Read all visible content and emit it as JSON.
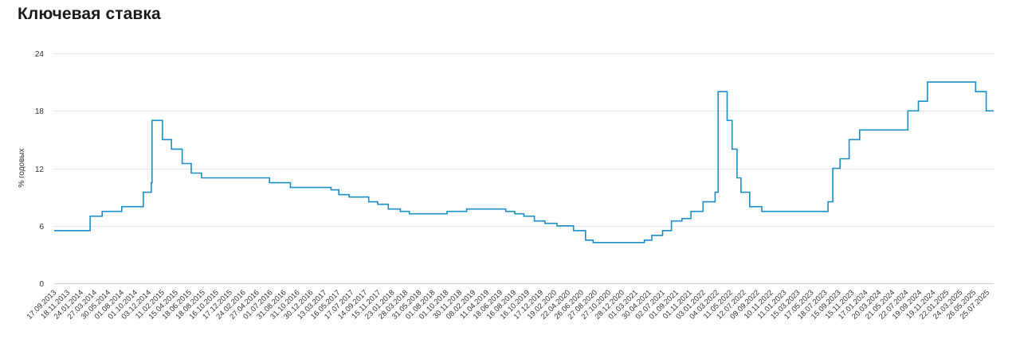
{
  "title": "Ключевая ставка",
  "chart_data": {
    "type": "line",
    "step": true,
    "title": "Ключевая ставка",
    "xlabel": "",
    "ylabel": "% годовых",
    "ylim": [
      0,
      24
    ],
    "yticks": [
      0,
      6,
      12,
      18,
      24
    ],
    "xlim": [
      "2013-09-17",
      "2025-09-01"
    ],
    "grid": true,
    "color": "#1b8fc6",
    "xtick_labels": [
      "17.09.2013",
      "18.11.2013",
      "24.01.2014",
      "27.03.2014",
      "30.05.2014",
      "01.08.2014",
      "01.10.2014",
      "03.12.2014",
      "11.02.2015",
      "15.04.2015",
      "18.06.2015",
      "18.08.2015",
      "16.10.2015",
      "17.12.2015",
      "24.02.2016",
      "27.04.2016",
      "01.07.2016",
      "31.08.2016",
      "31.10.2016",
      "30.12.2016",
      "13.03.2017",
      "16.05.2017",
      "17.07.2017",
      "14.09.2017",
      "15.11.2017",
      "23.01.2018",
      "28.03.2018",
      "31.05.2018",
      "01.08.2018",
      "01.10.2018",
      "30.11.2018",
      "08.02.2019",
      "11.04.2019",
      "18.06.2019",
      "16.08.2019",
      "16.10.2019",
      "17.12.2019",
      "19.02.2020",
      "22.04.2020",
      "26.06.2020",
      "27.08.2020",
      "27.10.2020",
      "28.12.2020",
      "01.03.2021",
      "30.04.2021",
      "02.07.2021",
      "01.09.2021",
      "01.11.2021",
      "03.01.2022",
      "04.03.2022",
      "11.05.2022",
      "12.07.2022",
      "09.09.2022",
      "10.11.2022",
      "11.01.2023",
      "15.03.2023",
      "17.05.2023",
      "18.07.2023",
      "15.09.2023",
      "15.11.2023",
      "17.01.2024",
      "20.03.2024",
      "21.05.2024",
      "22.07.2024",
      "19.09.2024",
      "19.11.2024",
      "22.01.2025",
      "24.03.2025",
      "26.05.2025",
      "25.07.2025"
    ],
    "series": [
      {
        "name": "",
        "points": [
          [
            "2013-09-17",
            5.5
          ],
          [
            "2014-03-03",
            7.0
          ],
          [
            "2014-04-28",
            7.5
          ],
          [
            "2014-07-28",
            8.0
          ],
          [
            "2014-11-05",
            9.5
          ],
          [
            "2014-12-12",
            10.5
          ],
          [
            "2014-12-16",
            17.0
          ],
          [
            "2015-02-02",
            15.0
          ],
          [
            "2015-03-16",
            14.0
          ],
          [
            "2015-05-05",
            12.5
          ],
          [
            "2015-06-16",
            11.5
          ],
          [
            "2015-08-03",
            11.0
          ],
          [
            "2016-06-14",
            10.5
          ],
          [
            "2016-09-19",
            10.0
          ],
          [
            "2017-03-27",
            9.75
          ],
          [
            "2017-05-02",
            9.25
          ],
          [
            "2017-06-19",
            9.0
          ],
          [
            "2017-09-18",
            8.5
          ],
          [
            "2017-10-30",
            8.25
          ],
          [
            "2017-12-18",
            7.75
          ],
          [
            "2018-02-12",
            7.5
          ],
          [
            "2018-03-26",
            7.25
          ],
          [
            "2018-09-17",
            7.5
          ],
          [
            "2018-12-17",
            7.75
          ],
          [
            "2019-06-17",
            7.5
          ],
          [
            "2019-07-29",
            7.25
          ],
          [
            "2019-09-09",
            7.0
          ],
          [
            "2019-10-28",
            6.5
          ],
          [
            "2019-12-16",
            6.25
          ],
          [
            "2020-02-10",
            6.0
          ],
          [
            "2020-04-27",
            5.5
          ],
          [
            "2020-06-22",
            4.5
          ],
          [
            "2020-07-27",
            4.25
          ],
          [
            "2021-03-22",
            4.5
          ],
          [
            "2021-04-26",
            5.0
          ],
          [
            "2021-06-15",
            5.5
          ],
          [
            "2021-07-26",
            6.5
          ],
          [
            "2021-09-13",
            6.75
          ],
          [
            "2021-10-25",
            7.5
          ],
          [
            "2021-12-20",
            8.5
          ],
          [
            "2022-02-14",
            9.5
          ],
          [
            "2022-02-28",
            20.0
          ],
          [
            "2022-04-11",
            17.0
          ],
          [
            "2022-05-04",
            14.0
          ],
          [
            "2022-05-27",
            11.0
          ],
          [
            "2022-06-14",
            9.5
          ],
          [
            "2022-07-25",
            8.0
          ],
          [
            "2022-09-19",
            7.5
          ],
          [
            "2023-07-24",
            8.5
          ],
          [
            "2023-08-15",
            12.0
          ],
          [
            "2023-09-18",
            13.0
          ],
          [
            "2023-10-30",
            15.0
          ],
          [
            "2023-12-18",
            16.0
          ],
          [
            "2024-07-29",
            18.0
          ],
          [
            "2024-09-16",
            19.0
          ],
          [
            "2024-10-28",
            21.0
          ],
          [
            "2025-06-09",
            20.0
          ],
          [
            "2025-07-28",
            18.0
          ],
          [
            "2025-09-01",
            18.0
          ]
        ]
      }
    ]
  }
}
